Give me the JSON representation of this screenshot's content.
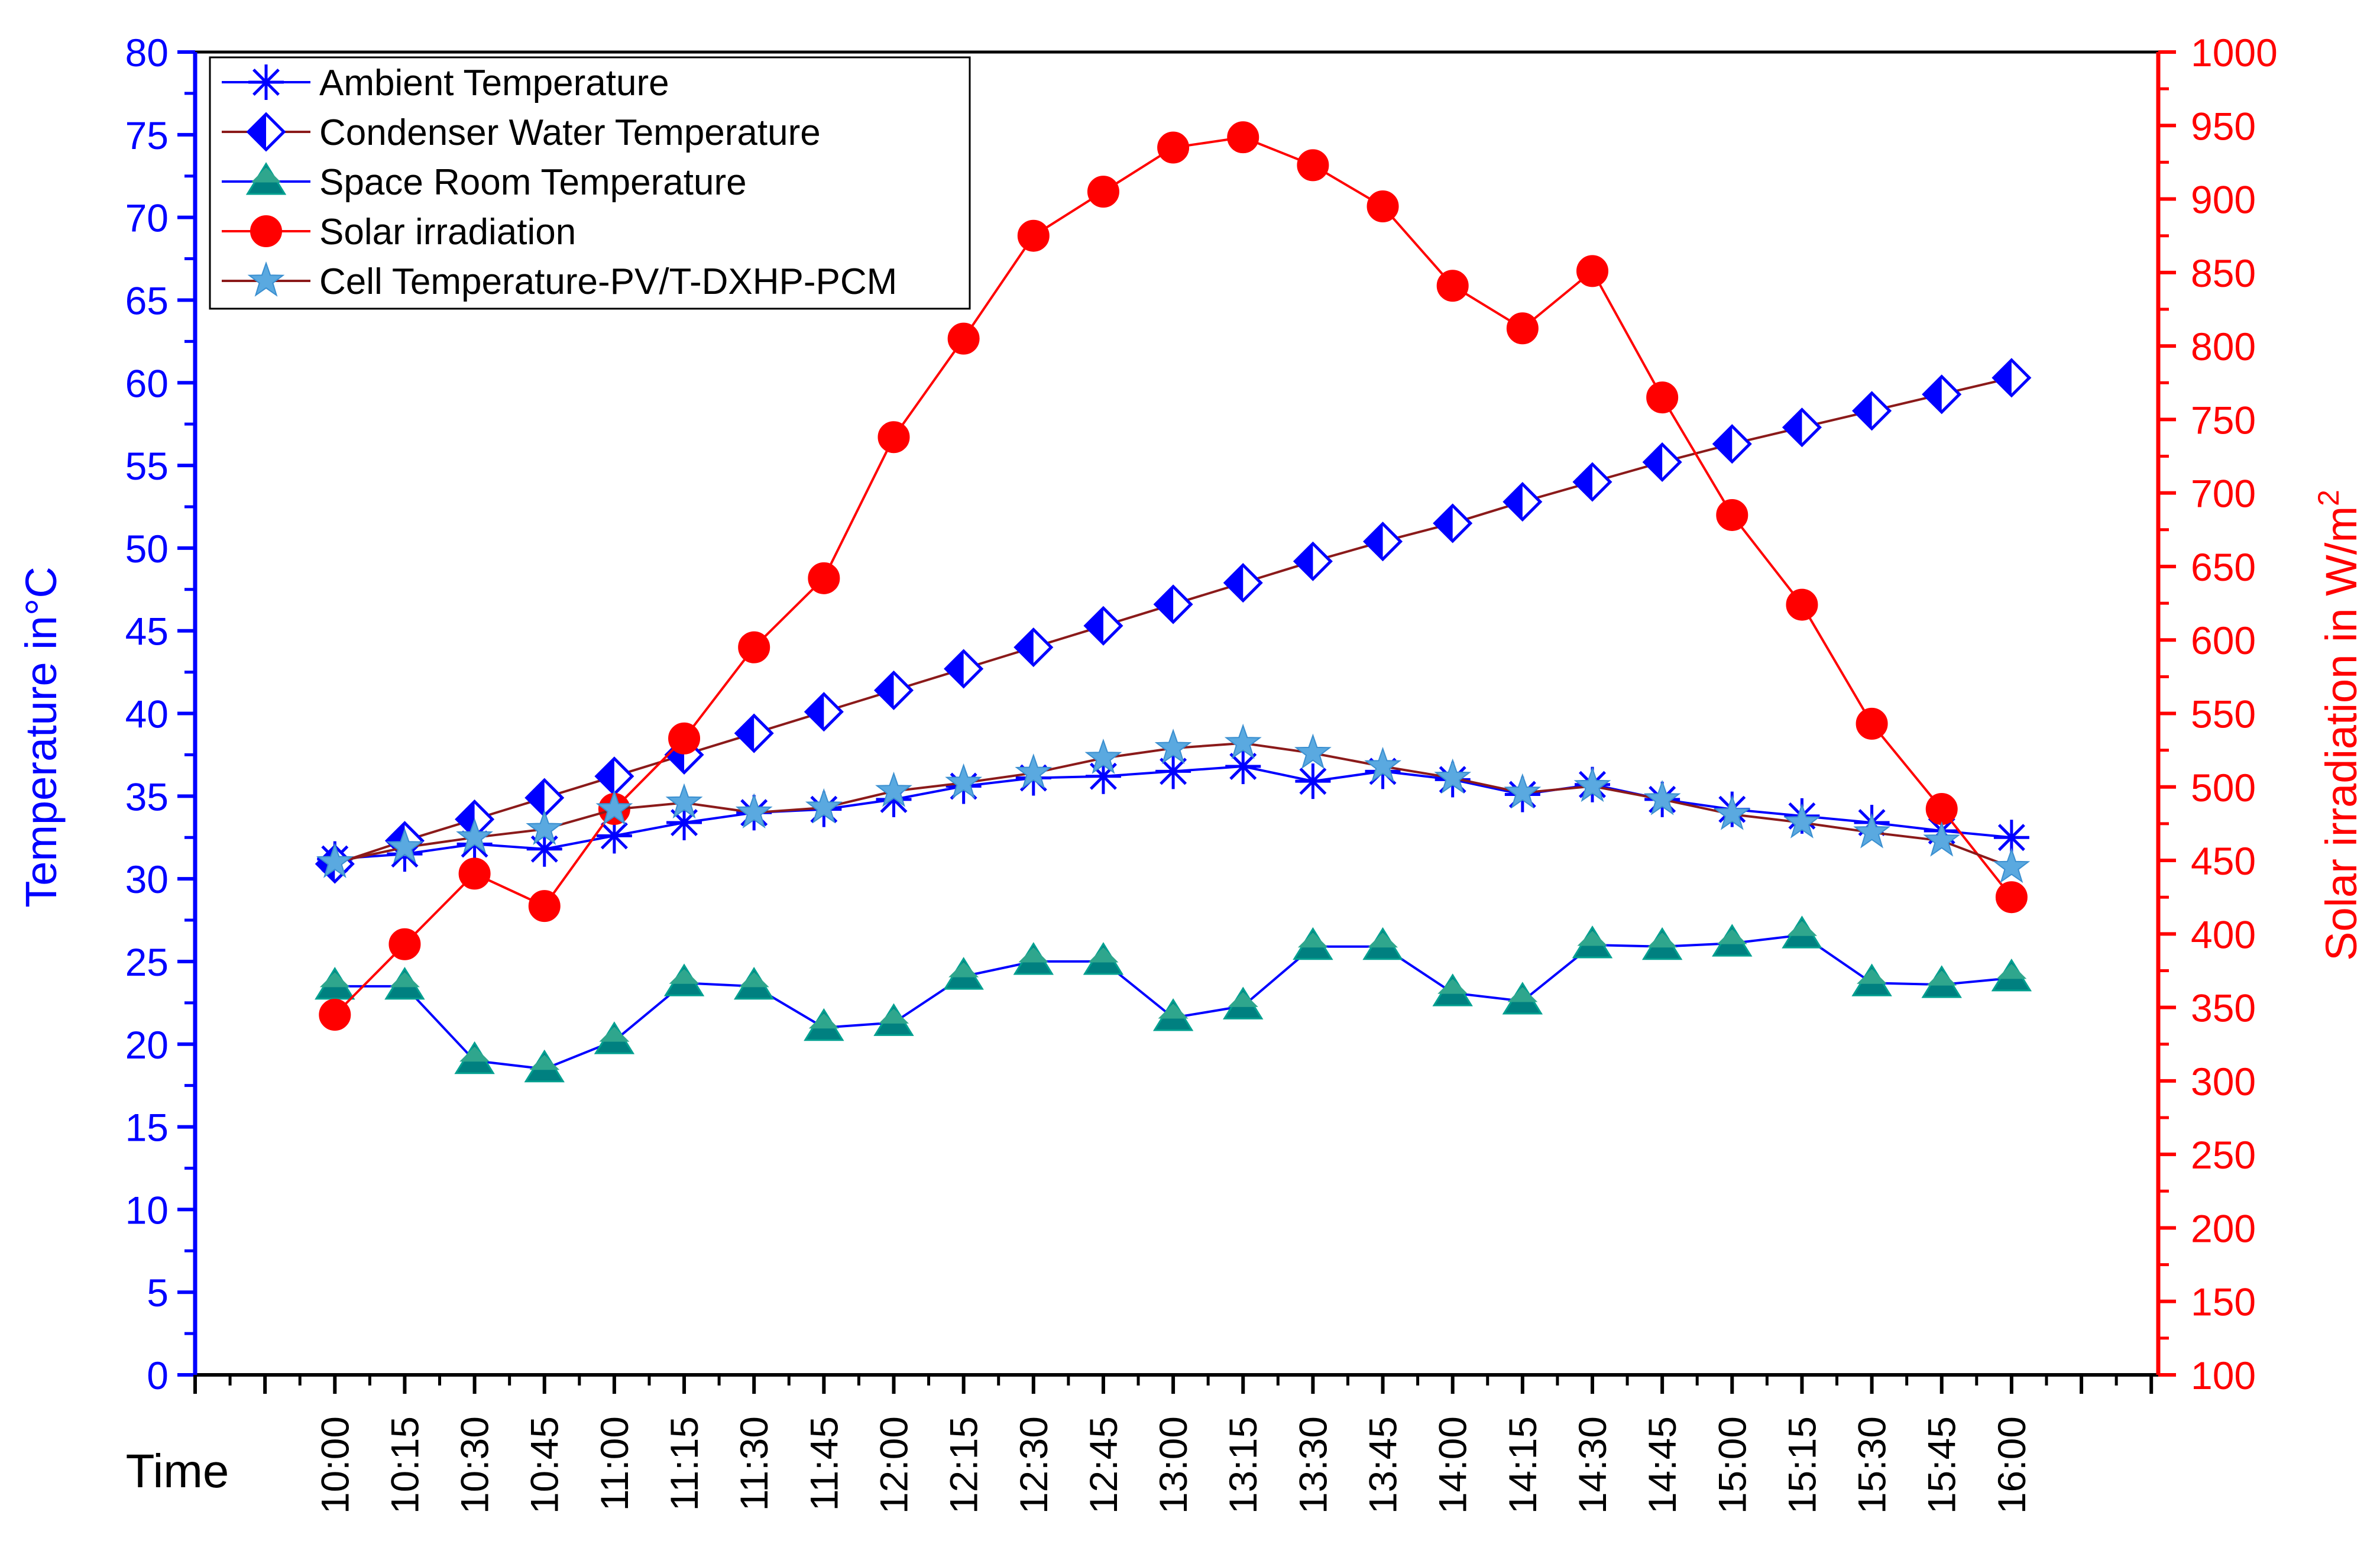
{
  "chart_data": {
    "type": "line",
    "title": "",
    "x_axis": {
      "label": "Time",
      "categories": [
        "10:00",
        "10:15",
        "10:30",
        "10:45",
        "11:00",
        "11:15",
        "11:30",
        "11:45",
        "12:00",
        "12:15",
        "12:30",
        "12:45",
        "13:00",
        "13:15",
        "13:30",
        "13:45",
        "14:00",
        "14:15",
        "14:30",
        "14:45",
        "15:00",
        "15:15",
        "15:30",
        "15:45",
        "16:00"
      ]
    },
    "y_left": {
      "label": "Temperature in°C",
      "range": [
        0,
        80
      ],
      "tick_step": 5,
      "color": "#0000ff"
    },
    "y_right": {
      "label_main": "Solar irradiation in W/m",
      "label_sup": "2",
      "range": [
        100,
        1000
      ],
      "tick_step": 50,
      "color": "#ff0000"
    },
    "grid": false,
    "legend_position": "top-left",
    "series": [
      {
        "name": "Ambient Temperature",
        "axis": "left",
        "marker": "asterisk",
        "line_color": "#0000ff",
        "marker_color": "#0000ff",
        "values": [
          31.2,
          31.5,
          32.1,
          31.8,
          32.6,
          33.4,
          34.0,
          34.2,
          34.8,
          35.6,
          36.1,
          36.2,
          36.5,
          36.8,
          35.9,
          36.5,
          36.0,
          35.1,
          35.7,
          34.8,
          34.2,
          33.8,
          33.4,
          32.9,
          32.5
        ]
      },
      {
        "name": "Condenser Water Temperature",
        "axis": "left",
        "marker": "half-diamond",
        "line_color": "#8b1a1a",
        "marker_color": "#0000ff",
        "values": [
          30.9,
          32.3,
          33.6,
          34.9,
          36.2,
          37.5,
          38.8,
          40.1,
          41.4,
          42.7,
          44.0,
          45.3,
          46.6,
          47.9,
          49.2,
          50.4,
          51.5,
          52.8,
          54.0,
          55.2,
          56.3,
          57.3,
          58.3,
          59.3,
          60.3
        ]
      },
      {
        "name": "Space Room Temperature",
        "axis": "left",
        "marker": "triangle",
        "line_color": "#0000ff",
        "marker_color": "#008080",
        "values": [
          23.5,
          23.5,
          19.0,
          18.5,
          20.2,
          23.7,
          23.5,
          21.0,
          21.3,
          24.1,
          25.0,
          25.0,
          21.6,
          22.3,
          25.9,
          25.9,
          23.1,
          22.6,
          26.0,
          25.9,
          26.1,
          26.6,
          23.7,
          23.6,
          24.0
        ]
      },
      {
        "name": "Solar irradiation",
        "axis": "right",
        "marker": "circle",
        "line_color": "#ff0000",
        "marker_color": "#ff0000",
        "values": [
          345,
          393,
          441,
          419,
          485,
          533,
          595,
          642,
          738,
          805,
          875,
          905,
          935,
          942,
          923,
          895,
          841,
          812,
          851,
          765,
          685,
          624,
          543,
          485,
          425
        ]
      },
      {
        "name": "Cell Temperature-PV/T-DXHP-PCM",
        "axis": "left",
        "marker": "star",
        "line_color": "#8b1a1a",
        "marker_color": "#5aa9e0",
        "values": [
          31.0,
          31.9,
          32.5,
          33.0,
          34.2,
          34.6,
          34.0,
          34.3,
          35.3,
          35.8,
          36.4,
          37.3,
          37.9,
          38.2,
          37.6,
          36.8,
          36.1,
          35.2,
          35.6,
          34.8,
          33.9,
          33.4,
          32.8,
          32.3,
          30.7
        ]
      }
    ]
  }
}
